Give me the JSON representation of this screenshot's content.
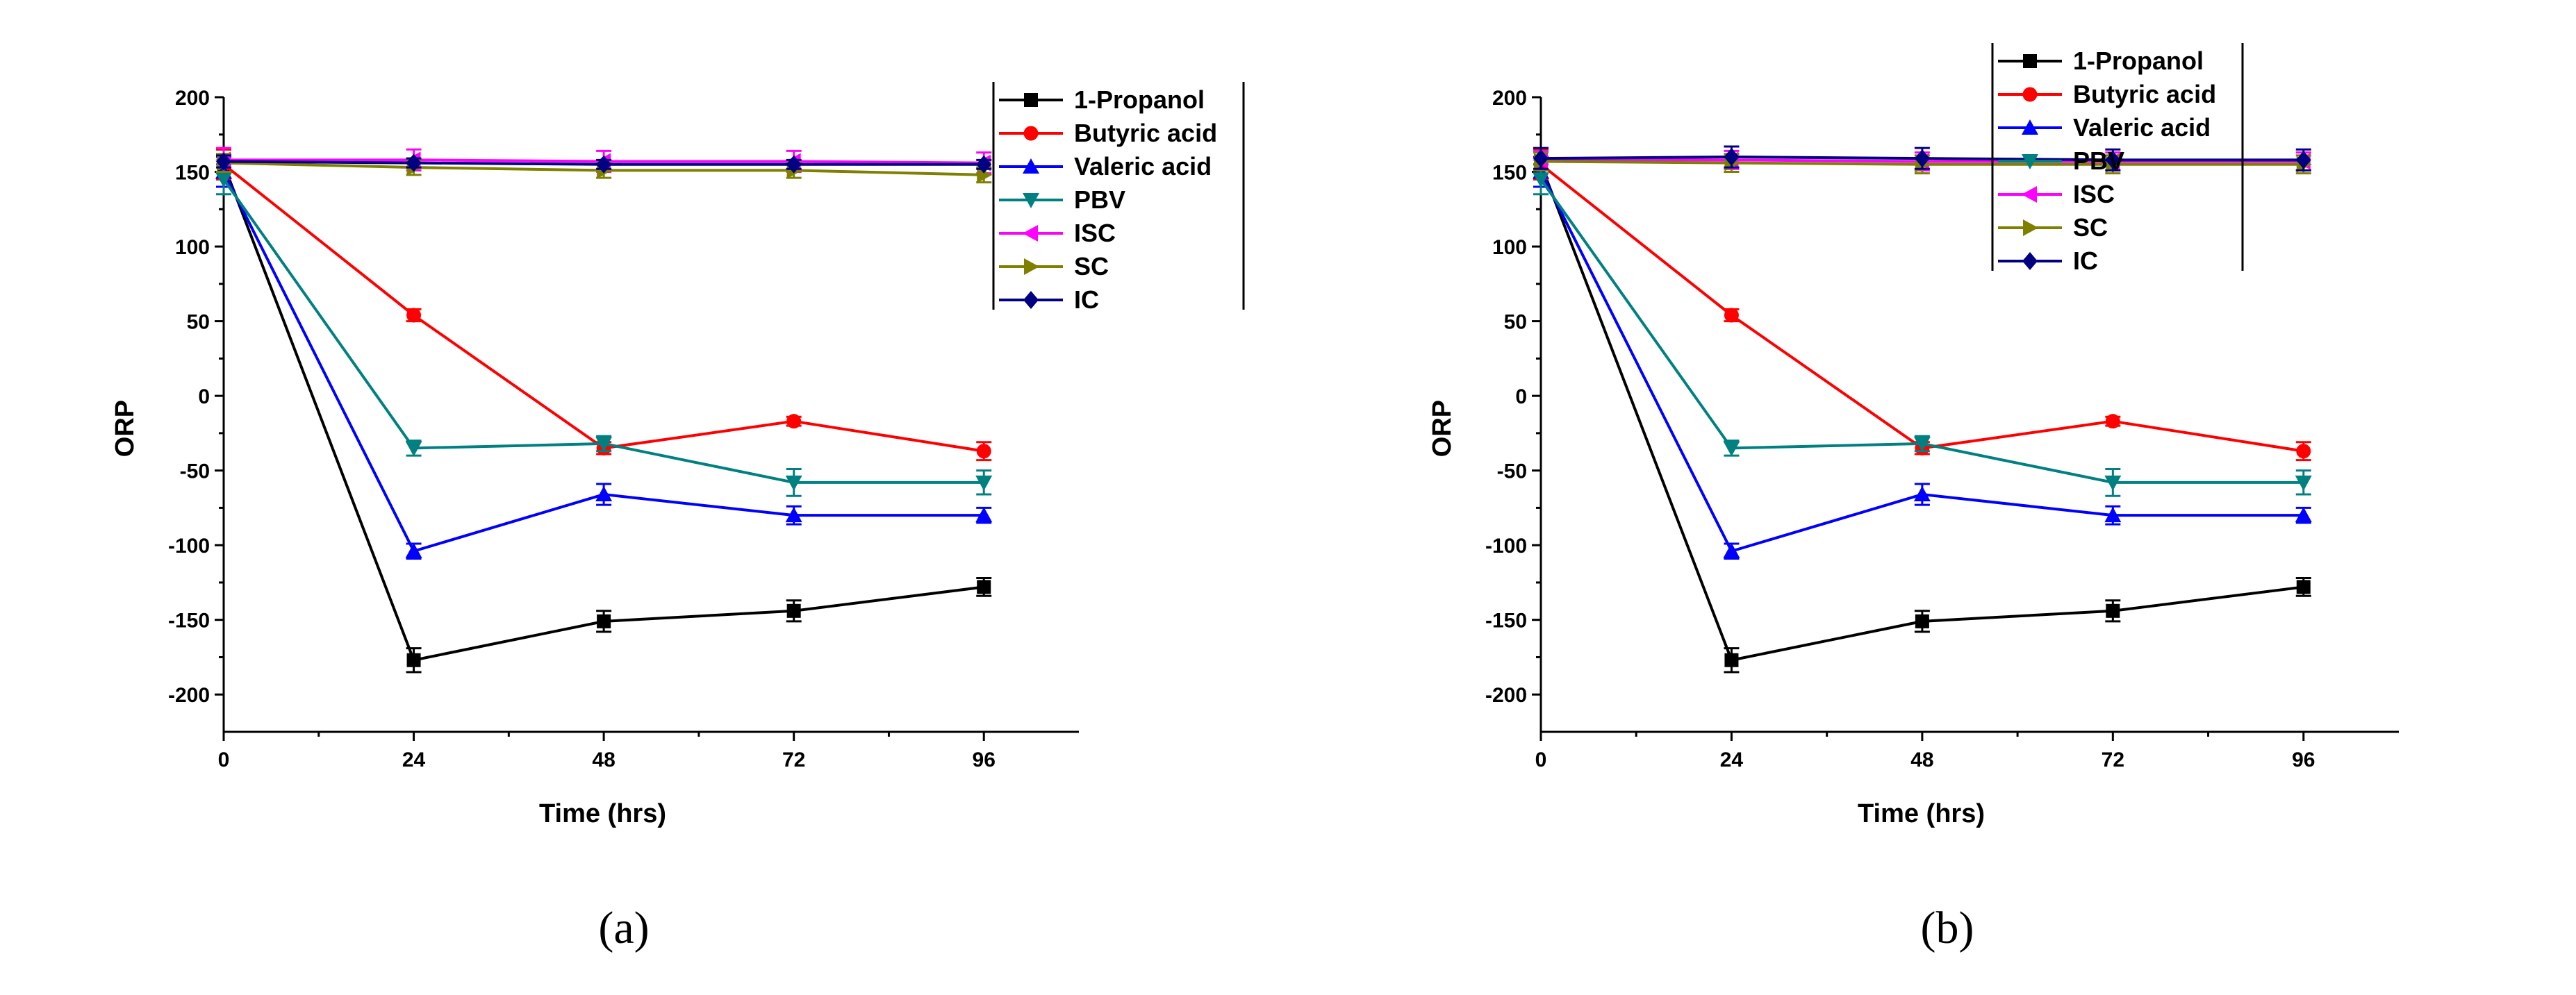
{
  "chart_data": [
    {
      "type": "line",
      "panel_label": "a",
      "xlabel": "Time (hrs)",
      "ylabel": "ORP",
      "xlim": [
        0,
        108
      ],
      "ylim": [
        -225,
        200
      ],
      "x": [
        0,
        24,
        48,
        72,
        96
      ],
      "x_ticks": [
        0,
        24,
        48,
        72,
        96
      ],
      "y_ticks": [
        -200,
        -150,
        -100,
        -50,
        0,
        50,
        100,
        150,
        200
      ],
      "legend_position": "top-right",
      "series": [
        {
          "name": "1-Propanol",
          "color": "#000000",
          "marker": "square",
          "values": [
            155,
            -177,
            -151,
            -144,
            -128
          ],
          "errors": [
            10,
            8,
            7,
            7,
            6
          ]
        },
        {
          "name": "Butyric acid",
          "color": "#ff0000",
          "marker": "circle",
          "values": [
            155,
            54,
            -35,
            -17,
            -37
          ],
          "errors": [
            10,
            4,
            4,
            3,
            6
          ]
        },
        {
          "name": "Valeric acid",
          "color": "#0000ff",
          "marker": "triangle-up",
          "values": [
            150,
            -104,
            -66,
            -80,
            -80
          ],
          "errors": [
            10,
            5,
            7,
            6,
            5
          ]
        },
        {
          "name": "PBV",
          "color": "#008080",
          "marker": "triangle-down",
          "values": [
            145,
            -35,
            -32,
            -58,
            -58
          ],
          "errors": [
            10,
            5,
            5,
            9,
            8
          ]
        },
        {
          "name": "ISC",
          "color": "#ff00ff",
          "marker": "triangle-left",
          "values": [
            158,
            158,
            157,
            157,
            156
          ],
          "errors": [
            8,
            7,
            7,
            7,
            7
          ]
        },
        {
          "name": "SC",
          "color": "#808000",
          "marker": "triangle-right",
          "values": [
            156,
            153,
            151,
            151,
            148
          ],
          "errors": [
            6,
            5,
            5,
            5,
            5
          ]
        },
        {
          "name": "IC",
          "color": "#000080",
          "marker": "diamond",
          "values": [
            157,
            156,
            155,
            155,
            155
          ],
          "errors": [
            4,
            3,
            3,
            3,
            3
          ]
        }
      ]
    },
    {
      "type": "line",
      "panel_label": "b",
      "xlabel": "Time (hrs)",
      "ylabel": "ORP",
      "xlim": [
        0,
        108
      ],
      "ylim": [
        -225,
        200
      ],
      "x": [
        0,
        24,
        48,
        72,
        96
      ],
      "x_ticks": [
        0,
        24,
        48,
        72,
        96
      ],
      "y_ticks": [
        -200,
        -150,
        -100,
        -50,
        0,
        50,
        100,
        150,
        200
      ],
      "legend_position": "top-right",
      "series": [
        {
          "name": "1-Propanol",
          "color": "#000000",
          "marker": "square",
          "values": [
            155,
            -177,
            -151,
            -144,
            -128
          ],
          "errors": [
            10,
            8,
            7,
            7,
            6
          ]
        },
        {
          "name": "Butyric acid",
          "color": "#ff0000",
          "marker": "circle",
          "values": [
            155,
            54,
            -35,
            -17,
            -37
          ],
          "errors": [
            10,
            4,
            4,
            3,
            6
          ]
        },
        {
          "name": "Valeric acid",
          "color": "#0000ff",
          "marker": "triangle-up",
          "values": [
            150,
            -104,
            -66,
            -80,
            -80
          ],
          "errors": [
            10,
            5,
            7,
            6,
            5
          ]
        },
        {
          "name": "PBV",
          "color": "#008080",
          "marker": "triangle-down",
          "values": [
            145,
            -35,
            -32,
            -58,
            -58
          ],
          "errors": [
            10,
            5,
            5,
            9,
            8
          ]
        },
        {
          "name": "ISC",
          "color": "#ff00ff",
          "marker": "triangle-left",
          "values": [
            158,
            158,
            157,
            157,
            157
          ],
          "errors": [
            6,
            6,
            6,
            6,
            6
          ]
        },
        {
          "name": "SC",
          "color": "#808000",
          "marker": "triangle-right",
          "values": [
            157,
            156,
            155,
            155,
            155
          ],
          "errors": [
            6,
            6,
            6,
            6,
            6
          ]
        },
        {
          "name": "IC",
          "color": "#000080",
          "marker": "diamond",
          "values": [
            159,
            160,
            159,
            158,
            158
          ],
          "errors": [
            7,
            7,
            7,
            7,
            7
          ]
        }
      ]
    }
  ],
  "captions": [
    "(a)",
    "(b)"
  ]
}
